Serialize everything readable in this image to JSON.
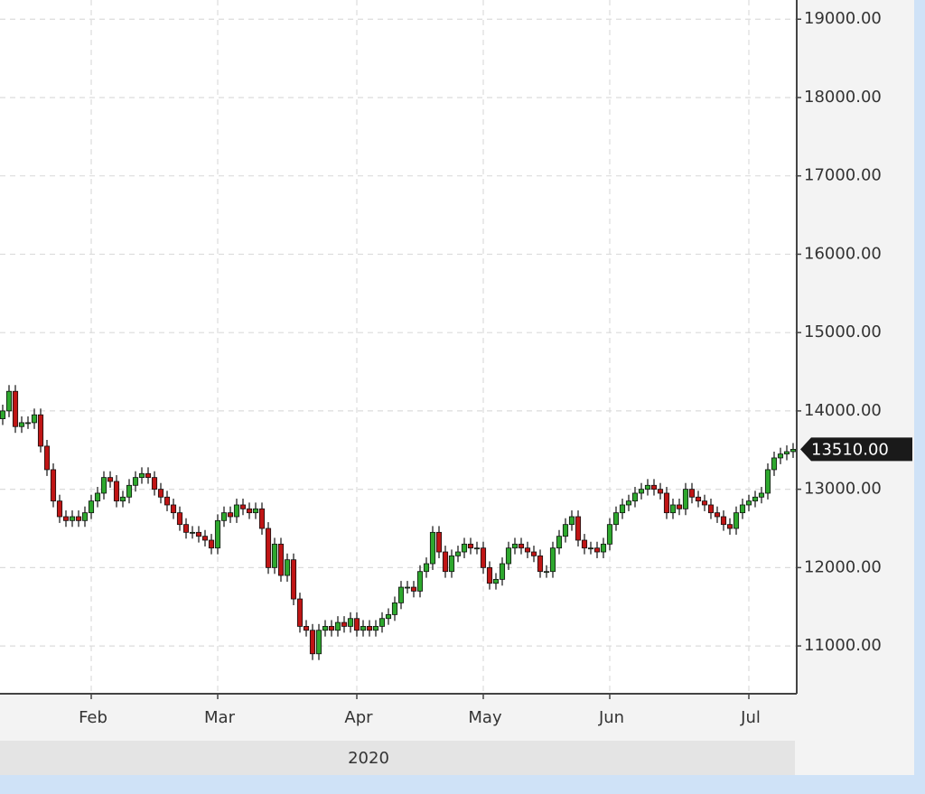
{
  "chart_data": {
    "type": "candlestick",
    "categories": [
      null,
      null,
      null,
      null,
      null,
      null,
      null,
      null,
      null,
      null,
      null,
      null,
      null,
      null,
      "Feb",
      null,
      null,
      null,
      null,
      null,
      null,
      null,
      null,
      null,
      null,
      null,
      null,
      null,
      null,
      null,
      null,
      null,
      null,
      null,
      "Mar",
      null,
      null,
      null,
      null,
      null,
      null,
      null,
      null,
      null,
      null,
      null,
      null,
      null,
      null,
      null,
      null,
      null,
      null,
      null,
      null,
      null,
      "Apr",
      null,
      null,
      null,
      null,
      null,
      null,
      null,
      null,
      null,
      null,
      null,
      null,
      null,
      null,
      null,
      null,
      null,
      null,
      null,
      "May",
      null,
      null,
      null,
      null,
      null,
      null,
      null,
      null,
      null,
      null,
      null,
      null,
      null,
      null,
      null,
      null,
      null,
      null,
      null,
      "Jun",
      null,
      null,
      null,
      null,
      null,
      null,
      null,
      null,
      null,
      null,
      null,
      null,
      null,
      null,
      null,
      null,
      null,
      null,
      null,
      null,
      null,
      "Jul",
      null,
      null,
      null,
      null,
      null,
      null,
      null
    ],
    "open": [
      13900,
      14000,
      14250,
      13800,
      13850,
      13850,
      13950,
      13550,
      13250,
      12850,
      12650,
      12600,
      12650,
      12600,
      12700,
      12850,
      12950,
      13150,
      13100,
      12850,
      12900,
      13050,
      13150,
      13200,
      13150,
      13000,
      12900,
      12800,
      12700,
      12550,
      12450,
      12450,
      12400,
      12350,
      12250,
      12600,
      12700,
      12650,
      12800,
      12750,
      12700,
      12750,
      12500,
      12000,
      12300,
      11900,
      12100,
      11600,
      11250,
      11200,
      10900,
      11200,
      11250,
      11200,
      11300,
      11250,
      11350,
      11200,
      11250,
      11200,
      11250,
      11350,
      11400,
      11550,
      11750,
      11750,
      11700,
      11950,
      12050,
      12450,
      12200,
      11950,
      12150,
      12200,
      12300,
      12250,
      12250,
      12000,
      11800,
      11850,
      12050,
      12250,
      12300,
      12250,
      12200,
      12150,
      11950,
      11950,
      12250,
      12400,
      12550,
      12650,
      12350,
      12250,
      12250,
      12200,
      12300,
      12550,
      12700,
      12800,
      12850,
      12950,
      13000,
      13050,
      13000,
      12950,
      12700,
      12800,
      12750,
      13000,
      12900,
      12850,
      12800,
      12700,
      12650,
      12550,
      12500,
      12700,
      12800,
      12850,
      12900,
      12950,
      13250,
      13400,
      13450,
      13480
    ],
    "high": [
      14080,
      14330,
      14330,
      13930,
      13930,
      14030,
      14030,
      13630,
      13330,
      12930,
      12730,
      12730,
      12730,
      12780,
      12930,
      13030,
      13230,
      13230,
      13180,
      12980,
      13130,
      13230,
      13280,
      13280,
      13230,
      13080,
      12980,
      12880,
      12780,
      12630,
      12530,
      12530,
      12480,
      12430,
      12680,
      12780,
      12780,
      12880,
      12880,
      12830,
      12830,
      12830,
      12580,
      12380,
      12380,
      12180,
      12180,
      11680,
      11330,
      11280,
      11280,
      11330,
      11330,
      11380,
      11380,
      11430,
      11430,
      11330,
      11330,
      11330,
      11430,
      11480,
      11630,
      11830,
      11830,
      11830,
      12030,
      12130,
      12530,
      12530,
      12280,
      12230,
      12280,
      12380,
      12380,
      12330,
      12330,
      12080,
      11930,
      12130,
      12330,
      12380,
      12380,
      12330,
      12280,
      12230,
      12030,
      12330,
      12480,
      12630,
      12730,
      12730,
      12430,
      12330,
      12330,
      12380,
      12630,
      12780,
      12880,
      12930,
      13030,
      13080,
      13130,
      13130,
      13080,
      13030,
      12880,
      12880,
      13080,
      13080,
      12980,
      12930,
      12880,
      12780,
      12730,
      12630,
      12780,
      12880,
      12930,
      12980,
      13030,
      13330,
      13480,
      13530,
      13560,
      13590
    ],
    "low": [
      13820,
      13920,
      13720,
      13720,
      13770,
      13770,
      13470,
      13170,
      12770,
      12570,
      12520,
      12520,
      12520,
      12520,
      12620,
      12770,
      12870,
      13020,
      12770,
      12770,
      12820,
      12970,
      13070,
      13070,
      12920,
      12820,
      12720,
      12620,
      12470,
      12370,
      12370,
      12320,
      12270,
      12170,
      12170,
      12520,
      12570,
      12570,
      12670,
      12620,
      12620,
      12420,
      11920,
      11920,
      11820,
      11820,
      11520,
      11170,
      11120,
      10820,
      10820,
      11120,
      11120,
      11120,
      11170,
      11170,
      11120,
      11120,
      11120,
      11120,
      11170,
      11270,
      11320,
      11470,
      11670,
      11620,
      11620,
      11870,
      11970,
      12120,
      11870,
      11870,
      12070,
      12120,
      12170,
      12170,
      11920,
      11720,
      11720,
      11770,
      11970,
      12170,
      12170,
      12120,
      12070,
      11870,
      11870,
      11870,
      12170,
      12320,
      12470,
      12270,
      12170,
      12170,
      12120,
      12120,
      12220,
      12470,
      12620,
      12720,
      12770,
      12870,
      12920,
      12920,
      12870,
      12620,
      12620,
      12670,
      12670,
      12820,
      12770,
      12720,
      12620,
      12570,
      12470,
      12420,
      12420,
      12620,
      12720,
      12770,
      12820,
      12870,
      13170,
      13320,
      13370,
      13400
    ],
    "close": [
      14000,
      14250,
      13800,
      13850,
      13850,
      13950,
      13550,
      13250,
      12850,
      12650,
      12600,
      12650,
      12600,
      12700,
      12850,
      12950,
      13150,
      13100,
      12850,
      12900,
      13050,
      13150,
      13200,
      13150,
      13000,
      12900,
      12800,
      12700,
      12550,
      12450,
      12450,
      12400,
      12350,
      12250,
      12600,
      12700,
      12650,
      12800,
      12750,
      12700,
      12750,
      12500,
      12000,
      12300,
      11900,
      12100,
      11600,
      11250,
      11200,
      10900,
      11200,
      11250,
      11200,
      11300,
      11250,
      11350,
      11200,
      11250,
      11200,
      11250,
      11350,
      11400,
      11550,
      11750,
      11750,
      11700,
      11950,
      12050,
      12450,
      12200,
      11950,
      12150,
      12200,
      12300,
      12250,
      12250,
      12000,
      11800,
      11850,
      12050,
      12250,
      12300,
      12250,
      12200,
      12150,
      11950,
      11950,
      12250,
      12400,
      12550,
      12650,
      12350,
      12250,
      12250,
      12200,
      12300,
      12550,
      12700,
      12800,
      12850,
      12950,
      13000,
      13050,
      13000,
      12950,
      12700,
      12800,
      12750,
      13000,
      12900,
      12850,
      12800,
      12700,
      12650,
      12550,
      12500,
      12700,
      12800,
      12850,
      12900,
      12950,
      13250,
      13400,
      13450,
      13480,
      13510
    ],
    "up_color": "#2ea82e",
    "down_color": "#c01515",
    "xlabel": "2020",
    "ylim": [
      10390,
      19245
    ],
    "yticks": [
      {
        "value": 11000,
        "label": "11000.00"
      },
      {
        "value": 12000,
        "label": "12000.00"
      },
      {
        "value": 13000,
        "label": "13000.00"
      },
      {
        "value": 14000,
        "label": "14000.00"
      },
      {
        "value": 15000,
        "label": "15000.00"
      },
      {
        "value": 16000,
        "label": "16000.00"
      },
      {
        "value": 17000,
        "label": "17000.00"
      },
      {
        "value": 18000,
        "label": "18000.00"
      },
      {
        "value": 19000,
        "label": "19000.00"
      }
    ],
    "grid": true,
    "last_price": {
      "value": 13510,
      "label": "13510.00"
    }
  }
}
